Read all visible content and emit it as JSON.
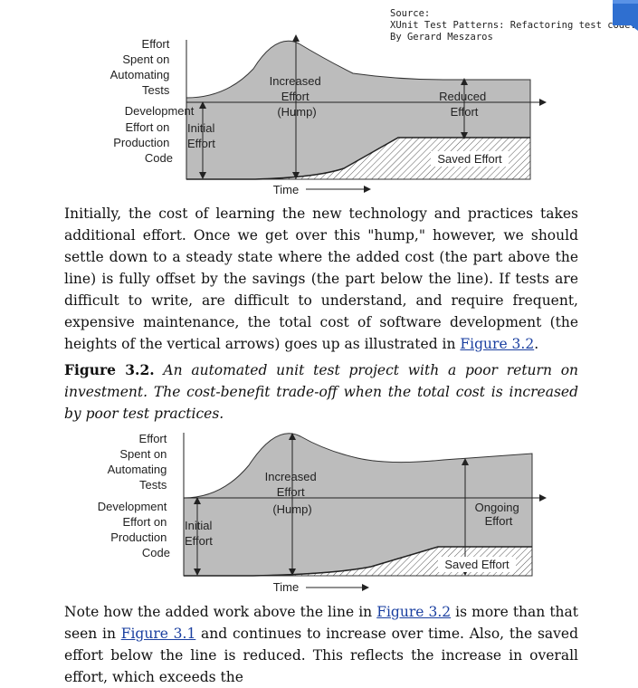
{
  "source": {
    "label": "Source:",
    "title": "XUnit Test Patterns: Refactoring test code.",
    "author": "By Gerard Meszaros"
  },
  "figure1": {
    "left_labels": [
      "Effort",
      "Spent on",
      "Automating",
      "Tests",
      "Development",
      "Effort on",
      "Production",
      "Code"
    ],
    "initial_effort": [
      "Initial",
      "Effort"
    ],
    "hump": [
      "Increased",
      "Effort",
      "(Hump)"
    ],
    "right_label": [
      "Reduced",
      "Effort"
    ],
    "saved": "Saved Effort",
    "time": "Time"
  },
  "paragraph1": {
    "text": "Initially, the cost of learning the new technology and practices takes additional effort. Once we get over this \"hump,\" however, we should settle down to a steady state where the added cost (the part above the line) is fully offset by the savings (the part below the line). If tests are difficult to write, are difficult to understand, and require frequent, expensive maintenance, the total cost of software development (the heights of the vertical arrows) goes up as illustrated in ",
    "link": "Figure 3.2",
    "tail": "."
  },
  "caption": {
    "label": "Figure 3.2.",
    "text": " An automated unit test project with a poor return on investment. The cost-benefit trade-off when the total cost is increased by poor test practices."
  },
  "figure2": {
    "left_labels": [
      "Effort",
      "Spent on",
      "Automating",
      "Tests",
      "Development",
      "Effort on",
      "Production",
      "Code"
    ],
    "initial_effort": [
      "Initial",
      "Effort"
    ],
    "hump": [
      "Increased",
      "Effort",
      "(Hump)"
    ],
    "right_label": [
      "Ongoing",
      "Effort"
    ],
    "saved": "Saved Effort",
    "time": "Time"
  },
  "paragraph2": {
    "text_a": "Note how the added work above the line in ",
    "link_a": "Figure 3.2",
    "text_b": " is more than that seen in ",
    "link_b": "Figure 3.1",
    "text_c": " and continues to increase over time. Also, the saved effort below the line is reduced. This reflects the increase in overall effort, which exceeds the"
  },
  "colors": {
    "fill": "#bcbcbc",
    "link": "#1a3fa0",
    "bookmark": "#2f6fd0"
  }
}
